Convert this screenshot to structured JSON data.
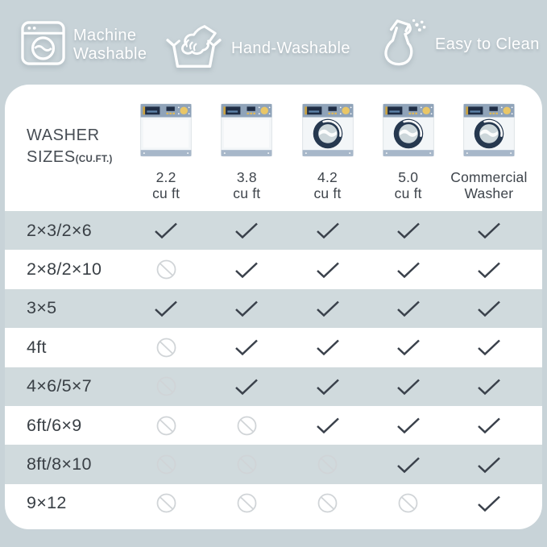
{
  "page": {
    "background": "#c8d3d8",
    "card_background": "#ffffff",
    "stripe_color": "#d0dadd"
  },
  "badges": [
    {
      "icon": "washing-machine-icon",
      "label": "Machine Washable"
    },
    {
      "icon": "hand-wash-icon",
      "label": "Hand-Washable"
    },
    {
      "icon": "spray-bottle-icon",
      "label": "Easy to Clean"
    }
  ],
  "table": {
    "title_line1": "WASHER",
    "title_line2": "SIZES",
    "title_suffix": "(CU.FT.)",
    "columns": [
      {
        "id": "2.2",
        "label_line1": "2.2",
        "label_line2": "cu ft",
        "washer_type": "top-load"
      },
      {
        "id": "3.8",
        "label_line1": "3.8",
        "label_line2": "cu ft",
        "washer_type": "top-load"
      },
      {
        "id": "4.2",
        "label_line1": "4.2",
        "label_line2": "cu ft",
        "washer_type": "front-load"
      },
      {
        "id": "5.0",
        "label_line1": "5.0",
        "label_line2": "cu ft",
        "washer_type": "front-load"
      },
      {
        "id": "commercial",
        "label_line1": "Commercial",
        "label_line2": "Washer",
        "washer_type": "front-load"
      }
    ],
    "rows": [
      {
        "size": "2×3/2×6",
        "fits": [
          true,
          true,
          true,
          true,
          true
        ]
      },
      {
        "size": "2×8/2×10",
        "fits": [
          false,
          true,
          true,
          true,
          true
        ]
      },
      {
        "size": "3×5",
        "fits": [
          true,
          true,
          true,
          true,
          true
        ]
      },
      {
        "size": "4ft",
        "fits": [
          false,
          true,
          true,
          true,
          true
        ]
      },
      {
        "size": "4×6/5×7",
        "fits": [
          false,
          true,
          true,
          true,
          true
        ]
      },
      {
        "size": "6ft/6×9",
        "fits": [
          false,
          false,
          true,
          true,
          true
        ]
      },
      {
        "size": "8ft/8×10",
        "fits": [
          false,
          false,
          false,
          true,
          true
        ]
      },
      {
        "size": "9×12",
        "fits": [
          false,
          false,
          false,
          false,
          true
        ]
      }
    ],
    "cell_icons": {
      "fits": "checkmark",
      "not_fits": "crossed-circle"
    }
  },
  "colors": {
    "check": "#3a414b",
    "crossed_circle": "#d0d4d7",
    "row_label": "#3a4046",
    "header_text": "#464c53",
    "badge_text": "#ffffff"
  },
  "chart_data": {
    "type": "table",
    "title": "WASHER SIZES (CU.FT.)",
    "columns": [
      "2.2 cu ft",
      "3.8 cu ft",
      "4.2 cu ft",
      "5.0 cu ft",
      "Commercial Washer"
    ],
    "rows": [
      "2×3/2×6",
      "2×8/2×10",
      "3×5",
      "4ft",
      "4×6/5×7",
      "6ft/6×9",
      "8ft/8×10",
      "9×12"
    ],
    "values": [
      [
        1,
        1,
        1,
        1,
        1
      ],
      [
        0,
        1,
        1,
        1,
        1
      ],
      [
        1,
        1,
        1,
        1,
        1
      ],
      [
        0,
        1,
        1,
        1,
        1
      ],
      [
        0,
        1,
        1,
        1,
        1
      ],
      [
        0,
        0,
        1,
        1,
        1
      ],
      [
        0,
        0,
        0,
        1,
        1
      ],
      [
        0,
        0,
        0,
        0,
        1
      ]
    ],
    "value_legend": {
      "1": "checkmark (fits washer)",
      "0": "crossed circle (does not fit)"
    }
  }
}
